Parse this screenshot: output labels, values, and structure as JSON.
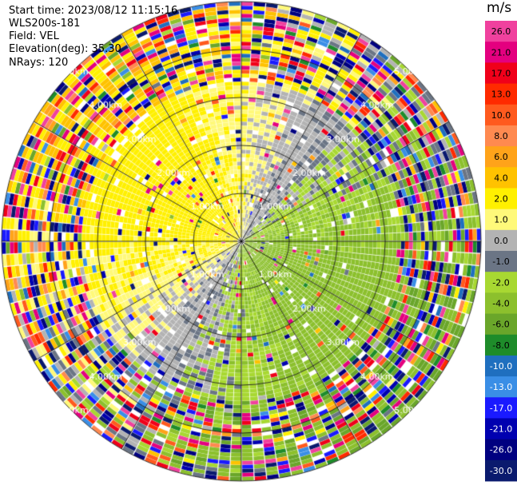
{
  "header": {
    "start_time": "Start time: 2023/08/12 11:15:16",
    "instrument": "WLS200s-181",
    "field": "Field: VEL",
    "elevation": "Elevation(deg): 35.30",
    "nrays": "NRays: 120"
  },
  "chart_data": {
    "type": "heatmap",
    "projection": "polar-ppi",
    "rays": 120,
    "range_rings_km": [
      1.0,
      2.0,
      3.0,
      4.0,
      5.0
    ],
    "ring_label_suffix": "km",
    "max_range_km": 5.0,
    "radial_lines_deg": [
      0,
      30,
      60,
      90,
      120,
      150,
      180,
      210,
      240,
      270,
      300,
      330
    ],
    "colorbar": {
      "unit": "m/s",
      "ticks": [
        "26.0",
        "21.0",
        "17.0",
        "13.0",
        "10.0",
        "8.0",
        "6.0",
        "4.0",
        "2.0",
        "1.0",
        "0.0",
        "-1.0",
        "-2.0",
        "-4.0",
        "-6.0",
        "-8.0",
        "-10.0",
        "-13.0",
        "-17.0",
        "-21.0",
        "-26.0",
        "-30.0"
      ],
      "colors": [
        "#f0419e",
        "#e4007f",
        "#f0001a",
        "#ff2a00",
        "#ff5a1e",
        "#ff8a50",
        "#ffa31a",
        "#ffc200",
        "#fff000",
        "#fff97a",
        "#b3b3b3",
        "#6b7585",
        "#a8d832",
        "#8cc02d",
        "#6aa62a",
        "#1e8c2a",
        "#1f6fbf",
        "#3a8ee6",
        "#1a1aff",
        "#0000b0",
        "#000080",
        "#0a1a6e"
      ]
    },
    "pattern": {
      "inner_km": {
        "near_zero": 0.0,
        "east_negative": -3.0,
        "west_positive": 3.0
      },
      "outer_noise_km": 3.3
    }
  },
  "colors": {
    "ring": "#000000",
    "text": "#000000",
    "ring_label": "#ffffff",
    "missing": "#ffffff"
  }
}
